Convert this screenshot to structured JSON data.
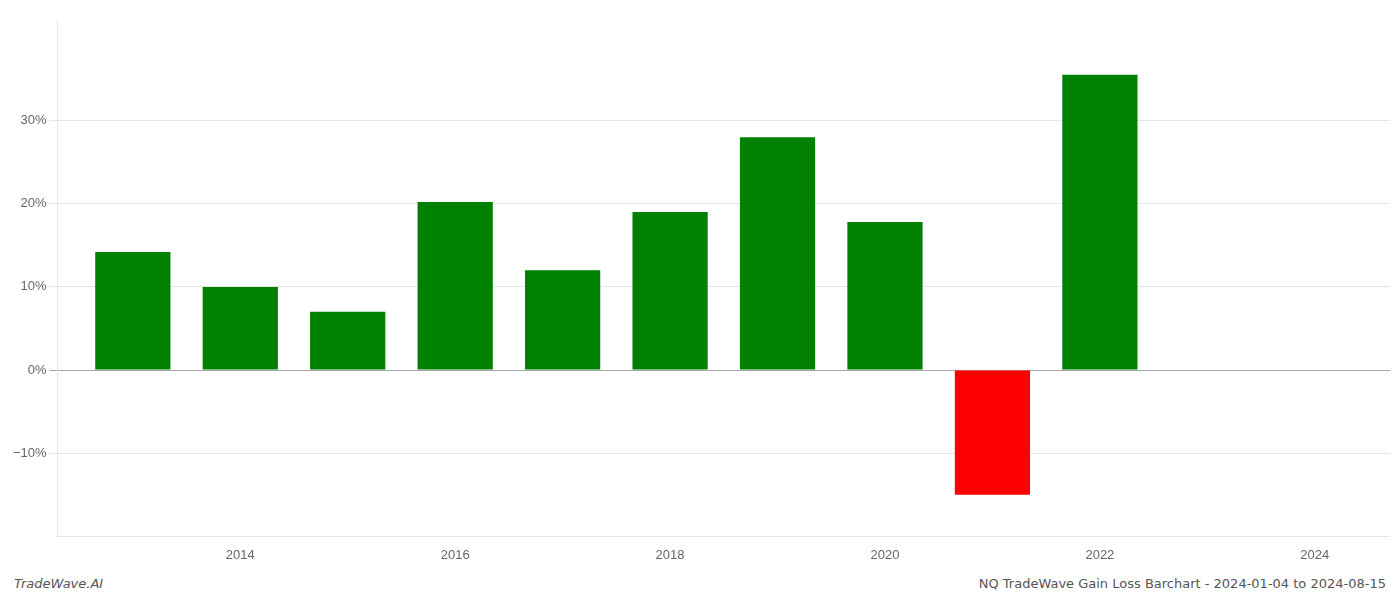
{
  "chart_data": {
    "type": "bar",
    "x": [
      2013,
      2014,
      2015,
      2016,
      2017,
      2018,
      2019,
      2020,
      2021,
      2022
    ],
    "values": [
      14.2,
      10.0,
      7.0,
      20.2,
      12.0,
      19.0,
      28.0,
      17.8,
      -15.0,
      35.5
    ],
    "colors": [
      "#008000",
      "#008000",
      "#008000",
      "#008000",
      "#008000",
      "#008000",
      "#008000",
      "#008000",
      "#ff0000",
      "#008000"
    ],
    "xlim": [
      2012.3,
      2024.7
    ],
    "xticks": [
      2014,
      2016,
      2018,
      2020,
      2022,
      2024
    ],
    "ylim": [
      -20,
      42
    ],
    "yticks": [
      {
        "value": -10,
        "label": "−10%"
      },
      {
        "value": 0,
        "label": "0%"
      },
      {
        "value": 10,
        "label": "10%"
      },
      {
        "value": 20,
        "label": "20%"
      },
      {
        "value": 30,
        "label": "30%"
      }
    ],
    "grid": "y",
    "annotations": [
      "TradeWave.AI",
      "NQ TradeWave Gain Loss Barchart - 2024-01-04 to 2024-08-15"
    ]
  }
}
